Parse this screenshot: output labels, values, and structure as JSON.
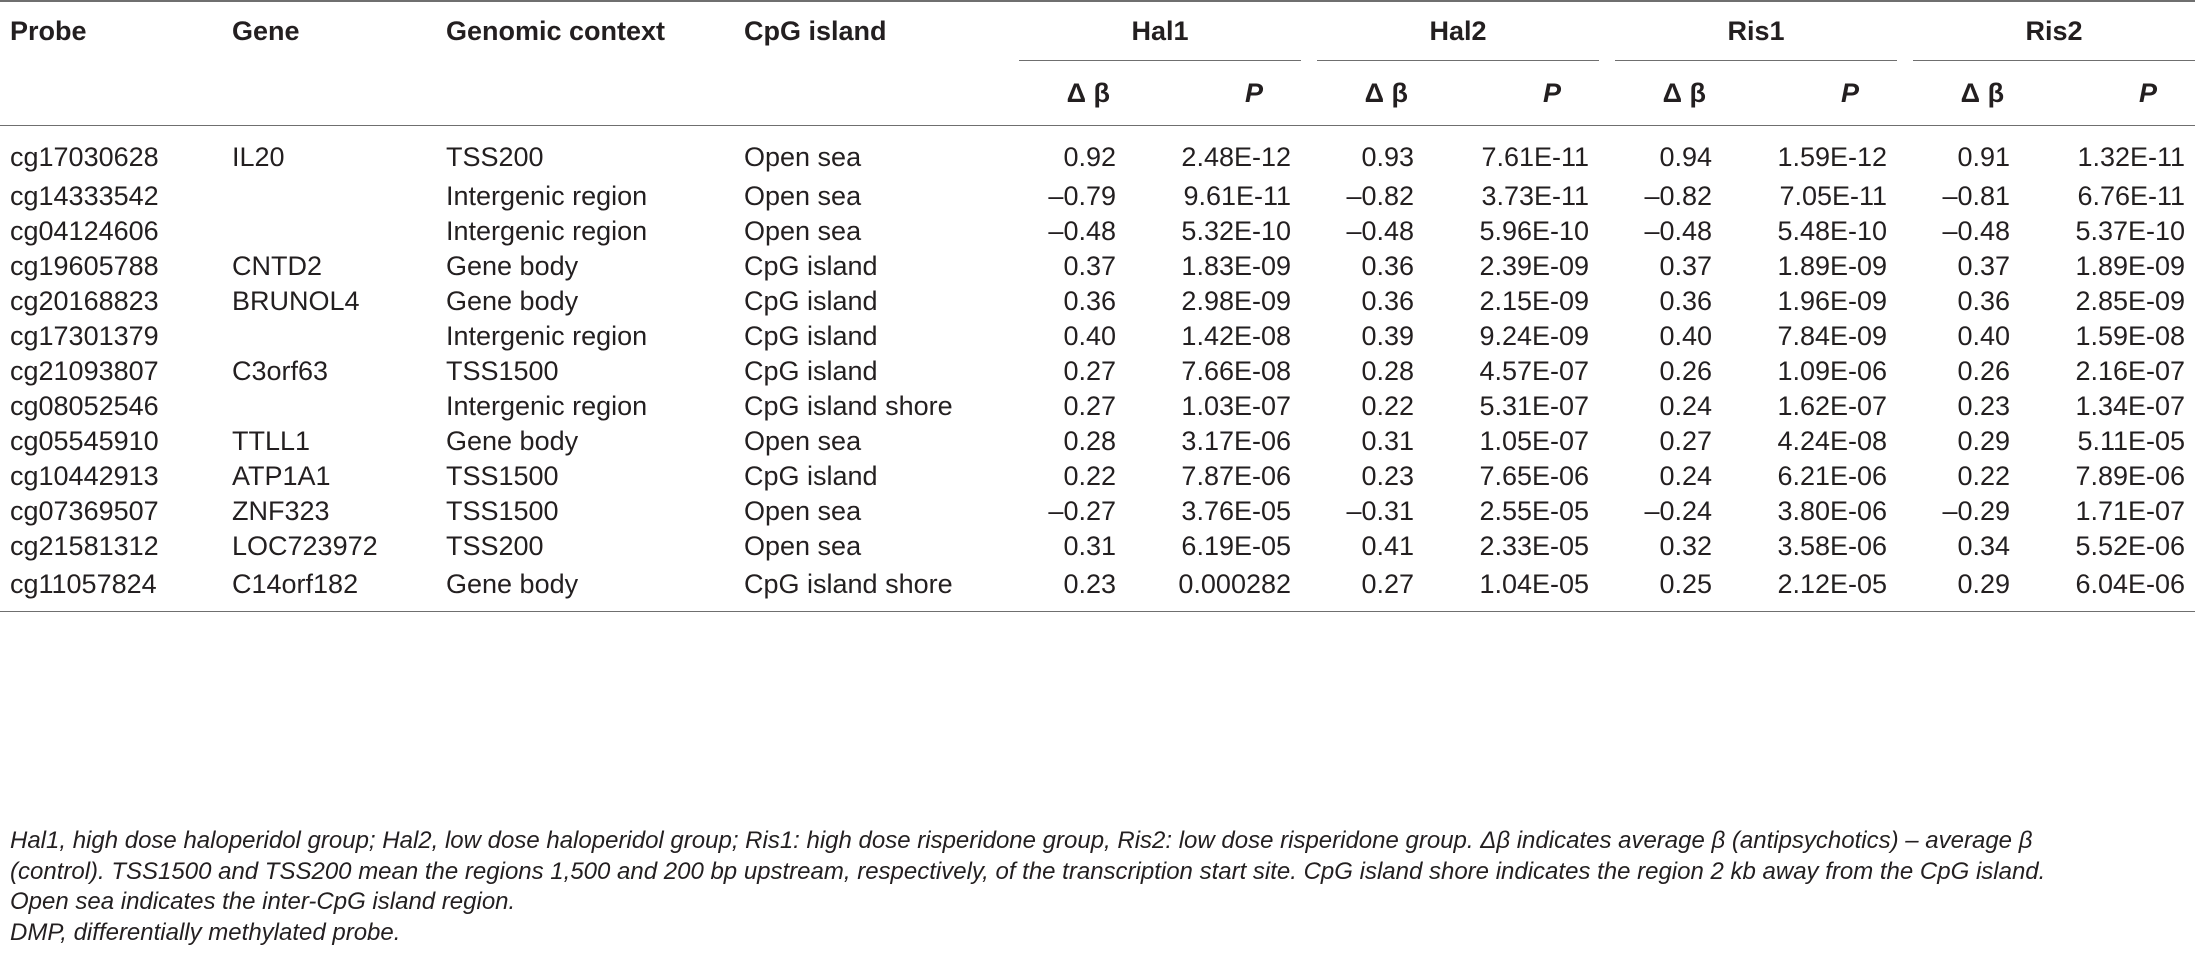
{
  "headers": {
    "probe": "Probe",
    "gene": "Gene",
    "context": "Genomic context",
    "cpg": "CpG island",
    "groups": [
      "Hal1",
      "Hal2",
      "Ris1",
      "Ris2"
    ],
    "delta_beta": "Δ β",
    "p": "P"
  },
  "rows": [
    {
      "probe": "cg17030628",
      "gene": "IL20",
      "context": "TSS200",
      "cpg": "Open sea",
      "vals": [
        "0.92",
        "2.48E-12",
        "0.93",
        "7.61E-11",
        "0.94",
        "1.59E-12",
        "0.91",
        "1.32E-11"
      ]
    },
    {
      "probe": "cg14333542",
      "gene": "",
      "context": "Intergenic region",
      "cpg": "Open sea",
      "vals": [
        "–0.79",
        "9.61E-11",
        "–0.82",
        "3.73E-11",
        "–0.82",
        "7.05E-11",
        "–0.81",
        "6.76E-11"
      ]
    },
    {
      "probe": "cg04124606",
      "gene": "",
      "context": "Intergenic region",
      "cpg": "Open sea",
      "vals": [
        "–0.48",
        "5.32E-10",
        "–0.48",
        "5.96E-10",
        "–0.48",
        "5.48E-10",
        "–0.48",
        "5.37E-10"
      ]
    },
    {
      "probe": "cg19605788",
      "gene": "CNTD2",
      "context": "Gene body",
      "cpg": "CpG island",
      "vals": [
        "0.37",
        "1.83E-09",
        "0.36",
        "2.39E-09",
        "0.37",
        "1.89E-09",
        "0.37",
        "1.89E-09"
      ]
    },
    {
      "probe": "cg20168823",
      "gene": "BRUNOL4",
      "context": "Gene body",
      "cpg": "CpG island",
      "vals": [
        "0.36",
        "2.98E-09",
        "0.36",
        "2.15E-09",
        "0.36",
        "1.96E-09",
        "0.36",
        "2.85E-09"
      ]
    },
    {
      "probe": "cg17301379",
      "gene": "",
      "context": "Intergenic region",
      "cpg": "CpG island",
      "vals": [
        "0.40",
        "1.42E-08",
        "0.39",
        "9.24E-09",
        "0.40",
        "7.84E-09",
        "0.40",
        "1.59E-08"
      ]
    },
    {
      "probe": "cg21093807",
      "gene": "C3orf63",
      "context": "TSS1500",
      "cpg": "CpG island",
      "vals": [
        "0.27",
        "7.66E-08",
        "0.28",
        "4.57E-07",
        "0.26",
        "1.09E-06",
        "0.26",
        "2.16E-07"
      ]
    },
    {
      "probe": "cg08052546",
      "gene": "",
      "context": "Intergenic region",
      "cpg": "CpG island shore",
      "vals": [
        "0.27",
        "1.03E-07",
        "0.22",
        "5.31E-07",
        "0.24",
        "1.62E-07",
        "0.23",
        "1.34E-07"
      ]
    },
    {
      "probe": "cg05545910",
      "gene": "TTLL1",
      "context": "Gene body",
      "cpg": "Open sea",
      "vals": [
        "0.28",
        "3.17E-06",
        "0.31",
        "1.05E-07",
        "0.27",
        "4.24E-08",
        "0.29",
        "5.11E-05"
      ]
    },
    {
      "probe": "cg10442913",
      "gene": "ATP1A1",
      "context": "TSS1500",
      "cpg": "CpG island",
      "vals": [
        "0.22",
        "7.87E-06",
        "0.23",
        "7.65E-06",
        "0.24",
        "6.21E-06",
        "0.22",
        "7.89E-06"
      ]
    },
    {
      "probe": "cg07369507",
      "gene": "ZNF323",
      "context": "TSS1500",
      "cpg": "Open sea",
      "vals": [
        "–0.27",
        "3.76E-05",
        "–0.31",
        "2.55E-05",
        "–0.24",
        "3.80E-06",
        "–0.29",
        "1.71E-07"
      ]
    },
    {
      "probe": "cg21581312",
      "gene": "LOC723972",
      "context": "TSS200",
      "cpg": "Open sea",
      "vals": [
        "0.31",
        "6.19E-05",
        "0.41",
        "2.33E-05",
        "0.32",
        "3.58E-06",
        "0.34",
        "5.52E-06"
      ]
    },
    {
      "probe": "cg11057824",
      "gene": "C14orf182",
      "context": "Gene body",
      "cpg": "CpG island shore",
      "vals": [
        "0.23",
        "0.000282",
        "0.27",
        "1.04E-05",
        "0.25",
        "2.12E-05",
        "0.29",
        "6.04E-06"
      ]
    }
  ],
  "footnote": {
    "line1": "Hal1, high dose haloperidol group; Hal2, low dose haloperidol group; Ris1: high dose risperidone group, Ris2: low dose risperidone group. Δβ indicates average β (antipsychotics) – average β (control). TSS1500 and TSS200 mean the regions 1,500 and 200 bp upstream, respectively, of the transcription start site. CpG island shore indicates the region 2 kb away from the CpG island. Open sea indicates the inter-CpG island region.",
    "line2": "DMP, differentially methylated probe."
  }
}
